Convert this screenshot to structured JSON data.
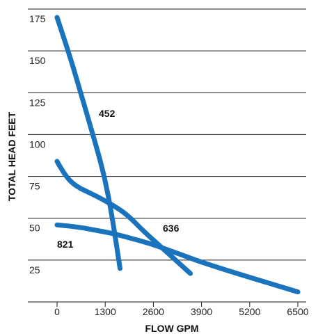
{
  "chart_data": {
    "type": "line",
    "title": "",
    "xlabel": "FLOW GPM",
    "ylabel": "TOTAL HEAD FEET",
    "xlim": [
      0,
      6500
    ],
    "ylim": [
      0,
      175
    ],
    "x_ticks": [
      "0",
      "1300",
      "2600",
      "3900",
      "5200",
      "6500"
    ],
    "y_ticks": [
      "25",
      "50",
      "75",
      "100",
      "125",
      "150",
      "175"
    ],
    "grid": "horizontal",
    "color": "#1a73bd",
    "series": [
      {
        "name": "452",
        "points": [
          [
            0,
            170
          ],
          [
            300,
            150
          ],
          [
            600,
            128
          ],
          [
            900,
            105
          ],
          [
            1200,
            82
          ],
          [
            1400,
            62
          ],
          [
            1550,
            42
          ],
          [
            1700,
            20
          ]
        ]
      },
      {
        "name": "636",
        "points": [
          [
            0,
            84
          ],
          [
            200,
            76
          ],
          [
            500,
            69
          ],
          [
            1000,
            64
          ],
          [
            1500,
            58
          ],
          [
            1900,
            52
          ],
          [
            2300,
            43
          ],
          [
            2800,
            33
          ],
          [
            3300,
            23
          ],
          [
            3600,
            17
          ]
        ]
      },
      {
        "name": "821",
        "points": [
          [
            0,
            46
          ],
          [
            500,
            45
          ],
          [
            1000,
            43
          ],
          [
            1500,
            41
          ],
          [
            2000,
            38
          ],
          [
            2500,
            35
          ],
          [
            3000,
            31
          ],
          [
            3500,
            27
          ],
          [
            4000,
            23
          ],
          [
            5000,
            16
          ],
          [
            6500,
            6
          ]
        ]
      }
    ]
  }
}
